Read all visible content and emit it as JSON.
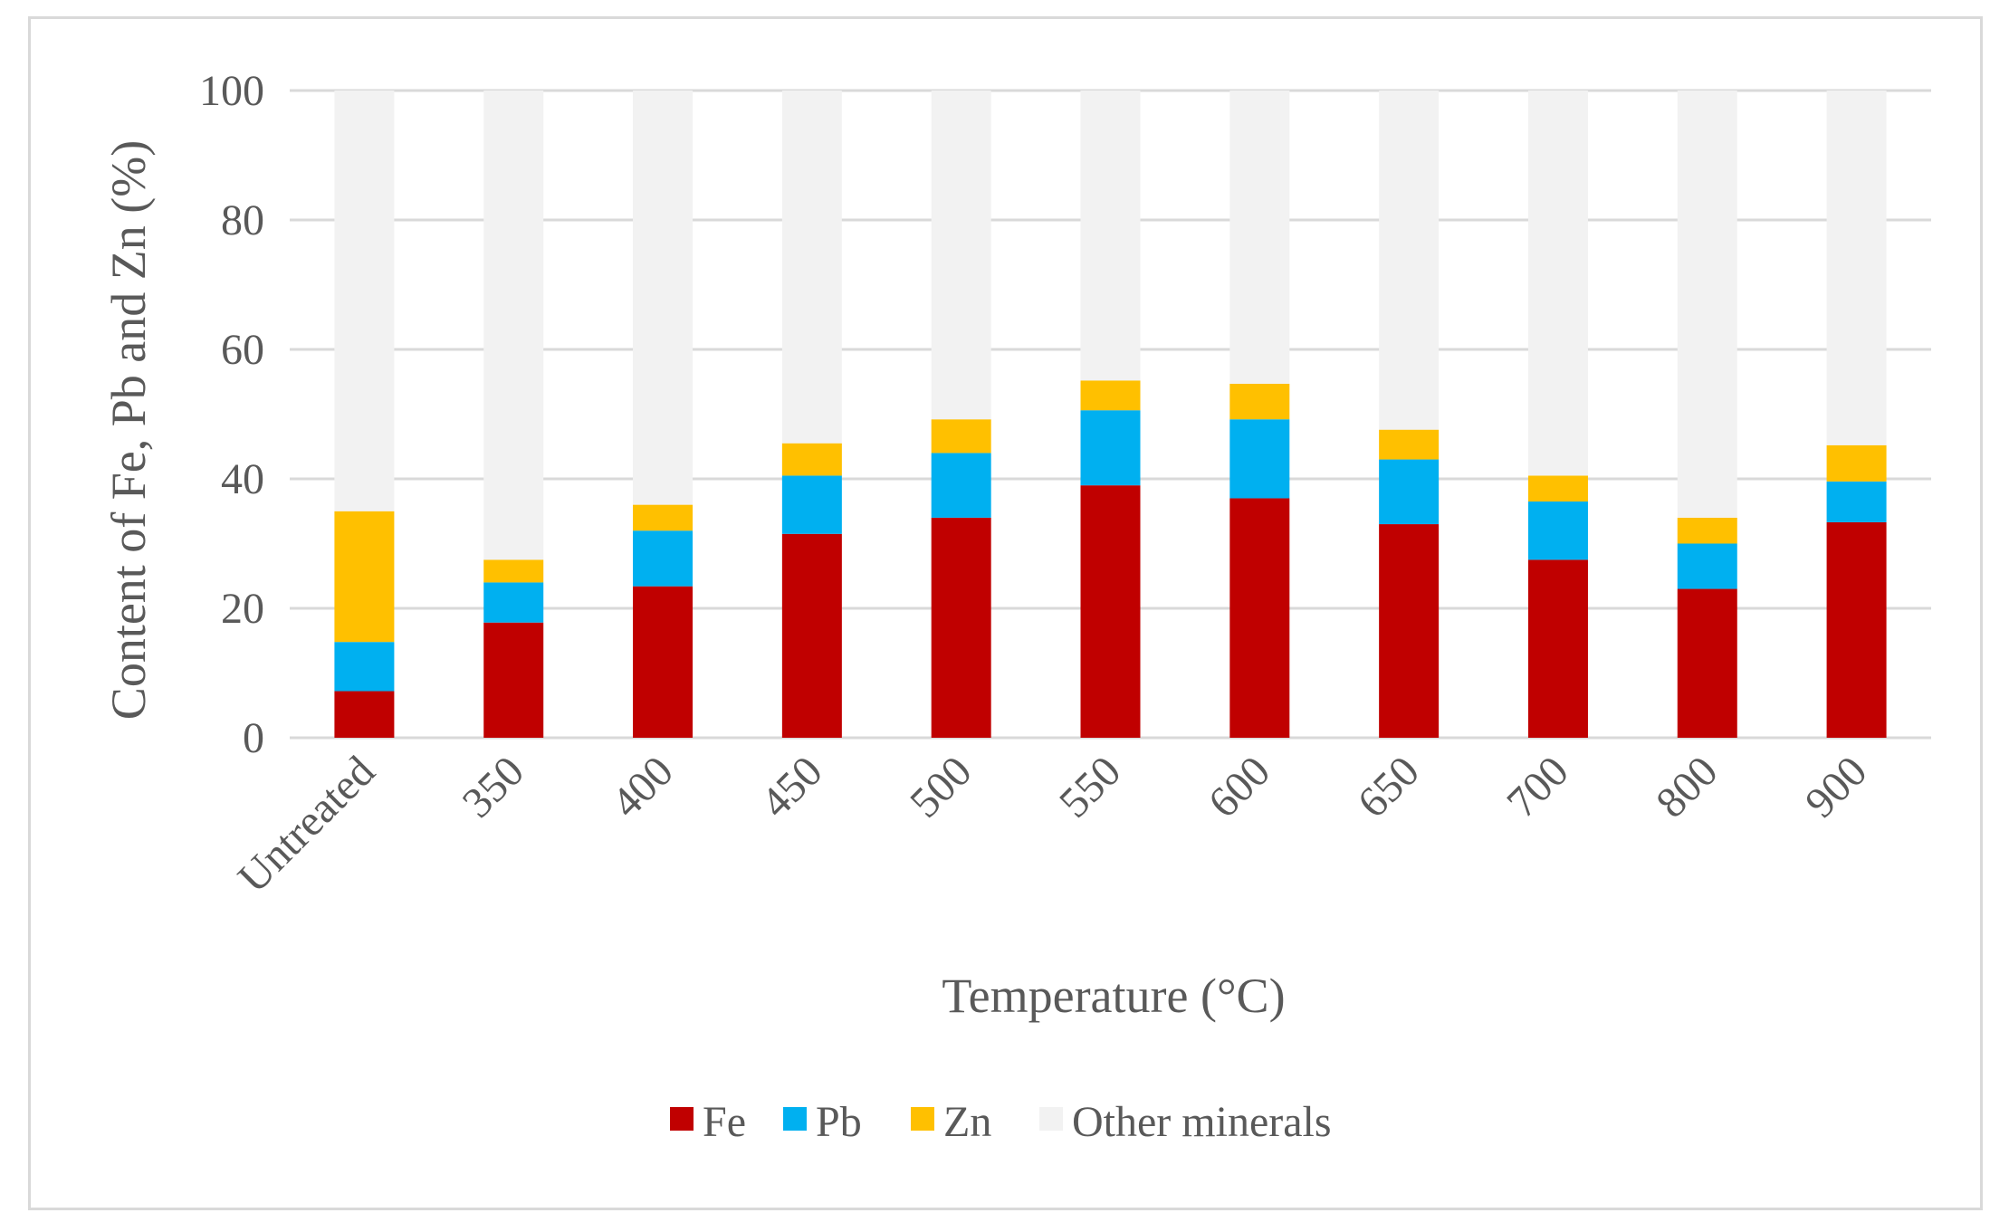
{
  "chart_data": {
    "type": "bar",
    "stacked": true,
    "title": "",
    "xlabel": "Temperature (°C)",
    "ylabel": "Content of Fe, Pb and Zn (%)",
    "ylim": [
      0,
      100
    ],
    "yticks": [
      "0",
      "20",
      "40",
      "60",
      "80",
      "100"
    ],
    "grid": true,
    "legend_position": "bottom",
    "categories": [
      "Untreated",
      "350",
      "400",
      "450",
      "500",
      "550",
      "600",
      "650",
      "700",
      "800",
      "900"
    ],
    "series": [
      {
        "name": "Fe",
        "color": "#c00000",
        "values": [
          7.2,
          17.8,
          23.4,
          31.5,
          34.0,
          39.0,
          37.0,
          33.0,
          27.5,
          23.0,
          33.3
        ]
      },
      {
        "name": "Pb",
        "color": "#00b0f0",
        "values": [
          7.6,
          6.2,
          8.6,
          9.0,
          10.0,
          11.6,
          12.2,
          10.0,
          9.0,
          7.0,
          6.3
        ]
      },
      {
        "name": "Zn",
        "color": "#ffc000",
        "values": [
          20.2,
          3.5,
          4.0,
          5.0,
          5.2,
          4.6,
          5.5,
          4.6,
          4.0,
          4.0,
          5.6
        ]
      },
      {
        "name": "Other minerals",
        "color": "#f2f2f2",
        "values": [
          65.0,
          72.5,
          64.0,
          54.5,
          50.8,
          44.8,
          45.3,
          52.4,
          59.5,
          66.0,
          54.8
        ]
      }
    ]
  }
}
